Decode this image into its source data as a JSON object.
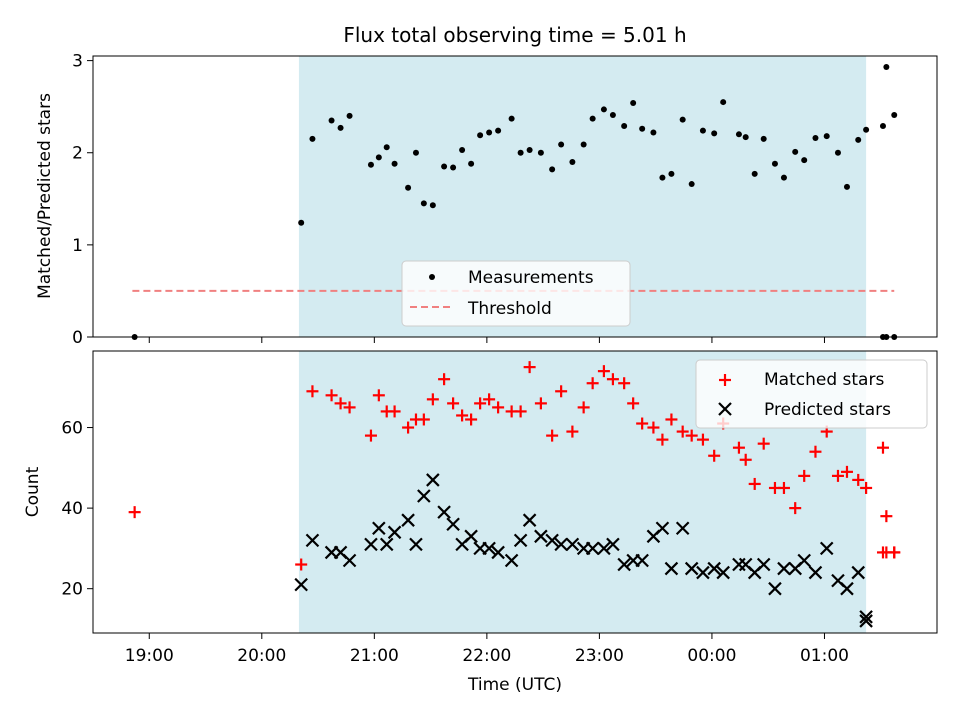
{
  "chart_data": [
    {
      "type": "scatter",
      "title": "Flux total observing time = 5.01 h",
      "ylabel": "Matched/Predicted stars",
      "ylim": [
        0,
        3.05
      ],
      "yticks": [
        0,
        1,
        2,
        3
      ],
      "x_unit": "hours since 19:00 UTC (next day past 24)",
      "xlim": [
        -0.5,
        7.0
      ],
      "observing_window": [
        1.33,
        6.37
      ],
      "observing_window_color": "#d4ebf1",
      "threshold": {
        "y": 0.5,
        "x": [
          -0.15,
          6.62
        ],
        "color": "#f08080"
      },
      "legend": {
        "placement": "lower-center",
        "measurements": "Measurements",
        "threshold": "Threshold"
      },
      "series": [
        {
          "name": "Measurements",
          "color": "#000000",
          "marker": "dot",
          "x": [
            -0.13,
            1.35,
            1.45,
            1.62,
            1.7,
            1.78,
            1.97,
            2.04,
            2.11,
            2.18,
            2.3,
            2.37,
            2.44,
            2.52,
            2.62,
            2.7,
            2.78,
            2.86,
            2.94,
            3.02,
            3.1,
            3.22,
            3.3,
            3.38,
            3.48,
            3.58,
            3.66,
            3.76,
            3.86,
            3.94,
            4.04,
            4.12,
            4.22,
            4.3,
            4.38,
            4.48,
            4.56,
            4.64,
            4.74,
            4.82,
            4.92,
            5.02,
            5.1,
            5.24,
            5.3,
            5.38,
            5.46,
            5.56,
            5.64,
            5.74,
            5.82,
            5.92,
            6.02,
            6.12,
            6.2,
            6.3,
            6.37,
            6.52,
            6.55,
            6.62
          ],
          "y": [
            0.0,
            1.24,
            2.15,
            2.35,
            2.27,
            2.4,
            1.87,
            1.95,
            2.06,
            1.88,
            1.62,
            2.0,
            1.45,
            1.43,
            1.85,
            1.84,
            2.03,
            1.88,
            2.19,
            2.22,
            2.24,
            2.37,
            2.0,
            2.03,
            2.0,
            1.82,
            2.09,
            1.9,
            2.09,
            2.37,
            2.47,
            2.41,
            2.29,
            2.54,
            2.26,
            2.22,
            1.73,
            1.77,
            2.36,
            1.66,
            2.24,
            2.21,
            2.55,
            2.2,
            2.17,
            1.77,
            2.15,
            1.88,
            1.73,
            2.01,
            1.92,
            2.16,
            2.18,
            2.0,
            1.63,
            2.14,
            2.25,
            2.29,
            2.93,
            2.41
          ]
        },
        {
          "name": "",
          "color": "#000000",
          "marker": "dot",
          "x": [
            6.52,
            6.55,
            6.62
          ],
          "y": [
            0.0,
            0.0,
            0.0
          ]
        }
      ]
    },
    {
      "type": "scatter",
      "xlabel": "Time (UTC)",
      "ylabel": "Count",
      "ylim": [
        9,
        79
      ],
      "yticks": [
        20,
        40,
        60
      ],
      "xticks": [
        "19:00",
        "20:00",
        "21:00",
        "22:00",
        "23:00",
        "00:00",
        "01:00"
      ],
      "xlim": [
        -0.5,
        7.0
      ],
      "observing_window": [
        1.33,
        6.37
      ],
      "legend": {
        "placement": "top-right",
        "matched": "Matched stars",
        "predicted": "Predicted stars"
      },
      "series": [
        {
          "name": "Matched stars",
          "color": "#ff0000",
          "marker": "plus",
          "x": [
            -0.13,
            1.35,
            1.45,
            1.62,
            1.7,
            1.78,
            1.97,
            2.04,
            2.11,
            2.18,
            2.3,
            2.37,
            2.44,
            2.52,
            2.62,
            2.7,
            2.78,
            2.86,
            2.94,
            3.02,
            3.1,
            3.22,
            3.3,
            3.38,
            3.48,
            3.58,
            3.66,
            3.76,
            3.86,
            3.94,
            4.04,
            4.12,
            4.22,
            4.3,
            4.38,
            4.48,
            4.56,
            4.64,
            4.74,
            4.82,
            4.92,
            5.02,
            5.1,
            5.24,
            5.3,
            5.38,
            5.46,
            5.56,
            5.64,
            5.74,
            5.82,
            5.92,
            6.02,
            6.12,
            6.2,
            6.3,
            6.37,
            6.52,
            6.55,
            6.62
          ],
          "y": [
            39,
            26,
            69,
            68,
            66,
            65,
            58,
            68,
            64,
            64,
            60,
            62,
            62,
            67,
            72,
            66,
            63,
            62,
            66,
            67,
            65,
            64,
            64,
            75,
            66,
            58,
            69,
            59,
            65,
            71,
            74,
            72,
            71,
            66,
            61,
            60,
            57,
            62,
            59,
            58,
            57,
            53,
            61,
            55,
            52,
            46,
            56,
            45,
            45,
            40,
            48,
            54,
            59,
            48,
            49,
            47,
            45,
            55,
            38,
            29
          ]
        },
        {
          "name": "",
          "color": "#ff0000",
          "marker": "plus",
          "x": [
            6.52,
            6.55,
            6.62
          ],
          "y": [
            29,
            29,
            29
          ]
        },
        {
          "name": "Predicted stars",
          "color": "#000000",
          "marker": "cross",
          "x": [
            1.35,
            1.45,
            1.62,
            1.7,
            1.78,
            1.97,
            2.04,
            2.11,
            2.18,
            2.3,
            2.37,
            2.44,
            2.52,
            2.62,
            2.7,
            2.78,
            2.86,
            2.94,
            3.02,
            3.1,
            3.22,
            3.3,
            3.38,
            3.48,
            3.58,
            3.66,
            3.76,
            3.86,
            3.94,
            4.04,
            4.12,
            4.22,
            4.3,
            4.38,
            4.48,
            4.56,
            4.64,
            4.74,
            4.82,
            4.92,
            5.02,
            5.1,
            5.24,
            5.3,
            5.38,
            5.46,
            5.56,
            5.64,
            5.74,
            5.82,
            5.92,
            6.02,
            6.12,
            6.2,
            6.3,
            6.37
          ],
          "y": [
            21,
            32,
            29,
            29,
            27,
            31,
            35,
            31,
            34,
            37,
            31,
            43,
            47,
            39,
            36,
            31,
            33,
            30,
            30,
            29,
            27,
            32,
            37,
            33,
            32,
            31,
            31,
            30,
            30,
            30,
            31,
            26,
            27,
            27,
            33,
            35,
            25,
            35,
            25,
            24,
            25,
            24,
            26,
            26,
            24,
            26,
            20,
            25,
            25,
            27,
            24,
            30,
            22,
            20,
            24,
            13
          ]
        },
        {
          "name": "",
          "color": "#000000",
          "marker": "cross",
          "x": [
            6.37
          ],
          "y": [
            12
          ]
        }
      ]
    }
  ]
}
